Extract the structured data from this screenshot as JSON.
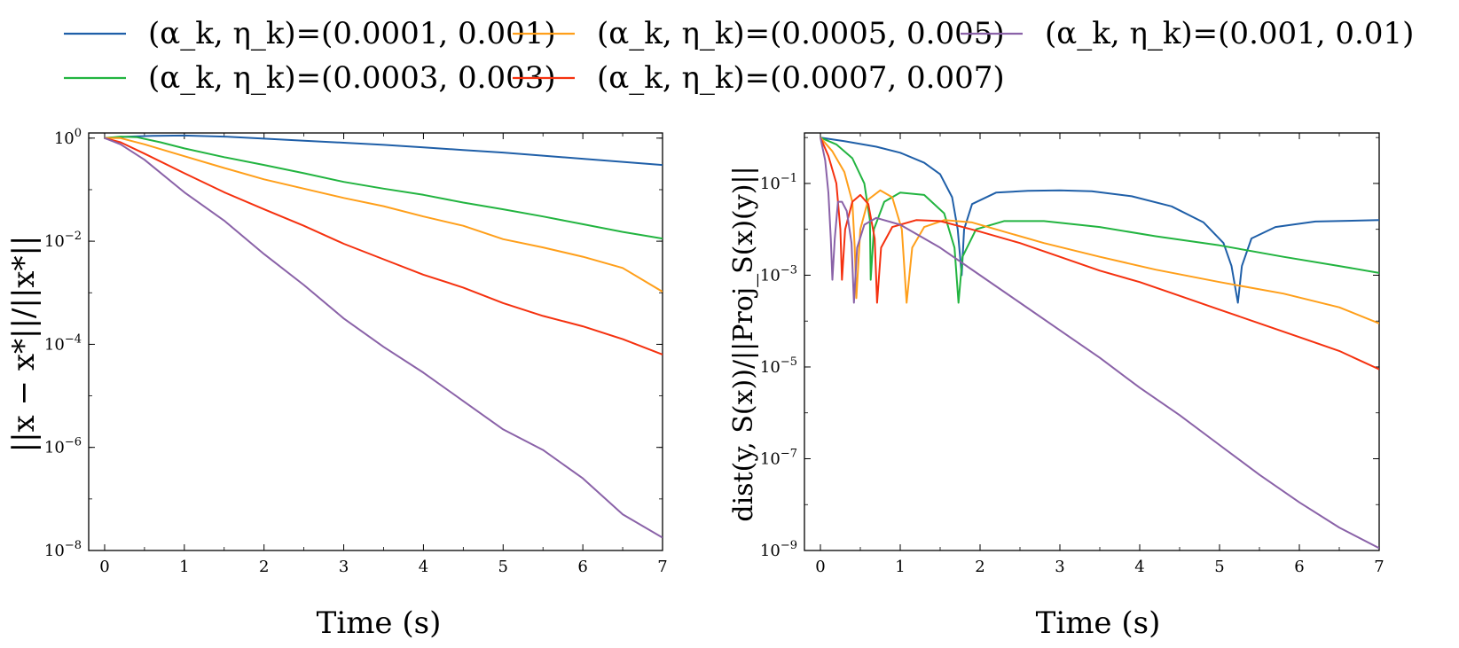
{
  "colors": {
    "blue": "#1f5fa8",
    "green": "#22b440",
    "orange": "#ff9f1a",
    "red": "#f5310f",
    "purple": "#8a62a8"
  },
  "legend": [
    {
      "label": "(α_k, η_k)=(0.0001, 0.001)",
      "color_key": "blue"
    },
    {
      "label": "(α_k, η_k)=(0.0005, 0.005)",
      "color_key": "orange"
    },
    {
      "label": "(α_k, η_k)=(0.001, 0.01)",
      "color_key": "purple"
    },
    {
      "label": "(α_k, η_k)=(0.0003, 0.003)",
      "color_key": "green"
    },
    {
      "label": "(α_k, η_k)=(0.0007, 0.007)",
      "color_key": "red"
    }
  ],
  "chart_data": [
    {
      "type": "line",
      "id": "left",
      "title": "",
      "xlabel": "Time (s)",
      "ylabel": "||x − x*||/||x*||",
      "xlim": [
        -0.2,
        7
      ],
      "ylim_log10": [
        -8,
        0.1
      ],
      "xticks": [
        0,
        1,
        2,
        3,
        4,
        5,
        6,
        7
      ],
      "yticks_log10": [
        0,
        -2,
        -4,
        -6,
        -8
      ],
      "series": [
        {
          "name": "(α_k, η_k)=(0.0001, 0.001)",
          "color_key": "blue",
          "points": [
            [
              0,
              0
            ],
            [
              0.3,
              0.03
            ],
            [
              0.6,
              0.045
            ],
            [
              1,
              0.05
            ],
            [
              1.5,
              0.03
            ],
            [
              2,
              -0.01
            ],
            [
              2.5,
              -0.05
            ],
            [
              3,
              -0.09
            ],
            [
              3.5,
              -0.13
            ],
            [
              4,
              -0.18
            ],
            [
              4.5,
              -0.23
            ],
            [
              5,
              -0.28
            ],
            [
              5.5,
              -0.34
            ],
            [
              6,
              -0.4
            ],
            [
              6.5,
              -0.46
            ],
            [
              7,
              -0.52
            ]
          ]
        },
        {
          "name": "(α_k, η_k)=(0.0003, 0.003)",
          "color_key": "green",
          "points": [
            [
              0,
              0
            ],
            [
              0.2,
              0.03
            ],
            [
              0.4,
              0.02
            ],
            [
              0.7,
              -0.08
            ],
            [
              1,
              -0.2
            ],
            [
              1.5,
              -0.37
            ],
            [
              2,
              -0.52
            ],
            [
              2.5,
              -0.68
            ],
            [
              3,
              -0.85
            ],
            [
              3.5,
              -0.98
            ],
            [
              4,
              -1.1
            ],
            [
              4.5,
              -1.25
            ],
            [
              5,
              -1.38
            ],
            [
              5.5,
              -1.52
            ],
            [
              6,
              -1.67
            ],
            [
              6.5,
              -1.82
            ],
            [
              7,
              -1.95
            ]
          ]
        },
        {
          "name": "(α_k, η_k)=(0.0005, 0.005)",
          "color_key": "orange",
          "points": [
            [
              0,
              0
            ],
            [
              0.2,
              0.0
            ],
            [
              0.5,
              -0.12
            ],
            [
              1,
              -0.35
            ],
            [
              1.5,
              -0.58
            ],
            [
              2,
              -0.8
            ],
            [
              2.5,
              -0.98
            ],
            [
              3,
              -1.16
            ],
            [
              3.5,
              -1.32
            ],
            [
              4,
              -1.52
            ],
            [
              4.5,
              -1.7
            ],
            [
              5,
              -1.96
            ],
            [
              5.5,
              -2.12
            ],
            [
              6,
              -2.3
            ],
            [
              6.5,
              -2.52
            ],
            [
              7,
              -2.98
            ]
          ]
        },
        {
          "name": "(α_k, η_k)=(0.0007, 0.007)",
          "color_key": "red",
          "points": [
            [
              0,
              0
            ],
            [
              0.2,
              -0.08
            ],
            [
              0.5,
              -0.3
            ],
            [
              1,
              -0.68
            ],
            [
              1.5,
              -1.05
            ],
            [
              2,
              -1.38
            ],
            [
              2.5,
              -1.7
            ],
            [
              3,
              -2.05
            ],
            [
              3.5,
              -2.35
            ],
            [
              4,
              -2.65
            ],
            [
              4.5,
              -2.9
            ],
            [
              5,
              -3.2
            ],
            [
              5.5,
              -3.45
            ],
            [
              6,
              -3.65
            ],
            [
              6.5,
              -3.9
            ],
            [
              7,
              -4.2
            ]
          ]
        },
        {
          "name": "(α_k, η_k)=(0.001, 0.01)",
          "color_key": "purple",
          "points": [
            [
              0,
              0
            ],
            [
              0.2,
              -0.12
            ],
            [
              0.5,
              -0.42
            ],
            [
              1,
              -1.05
            ],
            [
              1.5,
              -1.6
            ],
            [
              2,
              -2.25
            ],
            [
              2.5,
              -2.85
            ],
            [
              3,
              -3.5
            ],
            [
              3.5,
              -4.05
            ],
            [
              4,
              -4.55
            ],
            [
              4.5,
              -5.1
            ],
            [
              5,
              -5.65
            ],
            [
              5.5,
              -6.05
            ],
            [
              6,
              -6.6
            ],
            [
              6.5,
              -7.3
            ],
            [
              7,
              -7.75
            ]
          ]
        }
      ]
    },
    {
      "type": "line",
      "id": "right",
      "title": "",
      "xlabel": "Time (s)",
      "ylabel": "dist(y, S(x))/||Proj_S(x)(y)||",
      "xlim": [
        -0.2,
        7
      ],
      "ylim_log10": [
        -9,
        0.1
      ],
      "xticks": [
        0,
        1,
        2,
        3,
        4,
        5,
        6,
        7
      ],
      "yticks_log10": [
        -1,
        -3,
        -5,
        -7,
        -9
      ],
      "series": [
        {
          "name": "(α_k, η_k)=(0.0001, 0.001)",
          "color_key": "blue",
          "points": [
            [
              0,
              0
            ],
            [
              0.3,
              -0.08
            ],
            [
              0.7,
              -0.2
            ],
            [
              1.0,
              -0.33
            ],
            [
              1.3,
              -0.55
            ],
            [
              1.5,
              -0.8
            ],
            [
              1.65,
              -1.3
            ],
            [
              1.72,
              -2.0
            ],
            [
              1.77,
              -3.0
            ],
            [
              1.8,
              -2.0
            ],
            [
              1.9,
              -1.45
            ],
            [
              2.2,
              -1.2
            ],
            [
              2.6,
              -1.16
            ],
            [
              3.0,
              -1.15
            ],
            [
              3.4,
              -1.17
            ],
            [
              3.9,
              -1.28
            ],
            [
              4.4,
              -1.5
            ],
            [
              4.8,
              -1.85
            ],
            [
              5.05,
              -2.3
            ],
            [
              5.15,
              -2.8
            ],
            [
              5.23,
              -3.6
            ],
            [
              5.28,
              -2.8
            ],
            [
              5.4,
              -2.2
            ],
            [
              5.7,
              -1.95
            ],
            [
              6.2,
              -1.83
            ],
            [
              7,
              -1.8
            ]
          ]
        },
        {
          "name": "(α_k, η_k)=(0.0003, 0.003)",
          "color_key": "green",
          "points": [
            [
              0,
              0
            ],
            [
              0.2,
              -0.15
            ],
            [
              0.4,
              -0.45
            ],
            [
              0.55,
              -1.0
            ],
            [
              0.62,
              -1.8
            ],
            [
              0.63,
              -3.1
            ],
            [
              0.67,
              -2.0
            ],
            [
              0.8,
              -1.4
            ],
            [
              1.0,
              -1.2
            ],
            [
              1.3,
              -1.25
            ],
            [
              1.55,
              -1.65
            ],
            [
              1.68,
              -2.4
            ],
            [
              1.73,
              -3.6
            ],
            [
              1.78,
              -2.6
            ],
            [
              1.95,
              -2.0
            ],
            [
              2.3,
              -1.82
            ],
            [
              2.8,
              -1.82
            ],
            [
              3.5,
              -1.95
            ],
            [
              4.2,
              -2.15
            ],
            [
              5,
              -2.35
            ],
            [
              5.8,
              -2.6
            ],
            [
              6.5,
              -2.8
            ],
            [
              7,
              -2.95
            ]
          ]
        },
        {
          "name": "(α_k, η_k)=(0.0005, 0.005)",
          "color_key": "orange",
          "points": [
            [
              0,
              0
            ],
            [
              0.15,
              -0.3
            ],
            [
              0.3,
              -0.75
            ],
            [
              0.4,
              -1.4
            ],
            [
              0.43,
              -2.4
            ],
            [
              0.45,
              -3.5
            ],
            [
              0.5,
              -2.0
            ],
            [
              0.6,
              -1.35
            ],
            [
              0.75,
              -1.15
            ],
            [
              0.9,
              -1.3
            ],
            [
              1.02,
              -2.0
            ],
            [
              1.08,
              -3.6
            ],
            [
              1.15,
              -2.4
            ],
            [
              1.3,
              -1.95
            ],
            [
              1.55,
              -1.8
            ],
            [
              1.9,
              -1.85
            ],
            [
              2.3,
              -2.05
            ],
            [
              2.8,
              -2.3
            ],
            [
              3.5,
              -2.6
            ],
            [
              4.2,
              -2.88
            ],
            [
              5,
              -3.15
            ],
            [
              5.8,
              -3.4
            ],
            [
              6.5,
              -3.7
            ],
            [
              7,
              -4.05
            ]
          ]
        },
        {
          "name": "(α_k, η_k)=(0.0007, 0.007)",
          "color_key": "red",
          "points": [
            [
              0,
              0
            ],
            [
              0.1,
              -0.4
            ],
            [
              0.2,
              -1.0
            ],
            [
              0.25,
              -2.0
            ],
            [
              0.27,
              -3.1
            ],
            [
              0.31,
              -2.0
            ],
            [
              0.4,
              -1.4
            ],
            [
              0.5,
              -1.25
            ],
            [
              0.6,
              -1.45
            ],
            [
              0.68,
              -2.2
            ],
            [
              0.71,
              -3.6
            ],
            [
              0.76,
              -2.4
            ],
            [
              0.9,
              -1.95
            ],
            [
              1.2,
              -1.8
            ],
            [
              1.5,
              -1.82
            ],
            [
              2,
              -2.05
            ],
            [
              2.5,
              -2.3
            ],
            [
              3,
              -2.6
            ],
            [
              3.5,
              -2.9
            ],
            [
              4,
              -3.15
            ],
            [
              4.5,
              -3.45
            ],
            [
              5,
              -3.75
            ],
            [
              5.5,
              -4.05
            ],
            [
              6,
              -4.35
            ],
            [
              6.5,
              -4.65
            ],
            [
              7,
              -5.05
            ]
          ]
        },
        {
          "name": "(α_k, η_k)=(0.001, 0.01)",
          "color_key": "purple",
          "points": [
            [
              0,
              0
            ],
            [
              0.06,
              -0.5
            ],
            [
              0.1,
              -1.2
            ],
            [
              0.13,
              -2.2
            ],
            [
              0.15,
              -3.1
            ],
            [
              0.18,
              -2.2
            ],
            [
              0.22,
              -1.4
            ],
            [
              0.27,
              -1.4
            ],
            [
              0.33,
              -1.6
            ],
            [
              0.39,
              -2.3
            ],
            [
              0.42,
              -3.6
            ],
            [
              0.46,
              -2.4
            ],
            [
              0.55,
              -1.9
            ],
            [
              0.7,
              -1.75
            ],
            [
              1,
              -1.9
            ],
            [
              1.5,
              -2.4
            ],
            [
              2,
              -3.0
            ],
            [
              2.5,
              -3.6
            ],
            [
              3,
              -4.2
            ],
            [
              3.5,
              -4.8
            ],
            [
              4,
              -5.45
            ],
            [
              4.5,
              -6.05
            ],
            [
              5,
              -6.7
            ],
            [
              5.5,
              -7.35
            ],
            [
              6,
              -7.95
            ],
            [
              6.5,
              -8.5
            ],
            [
              7,
              -8.95
            ]
          ]
        }
      ]
    }
  ]
}
